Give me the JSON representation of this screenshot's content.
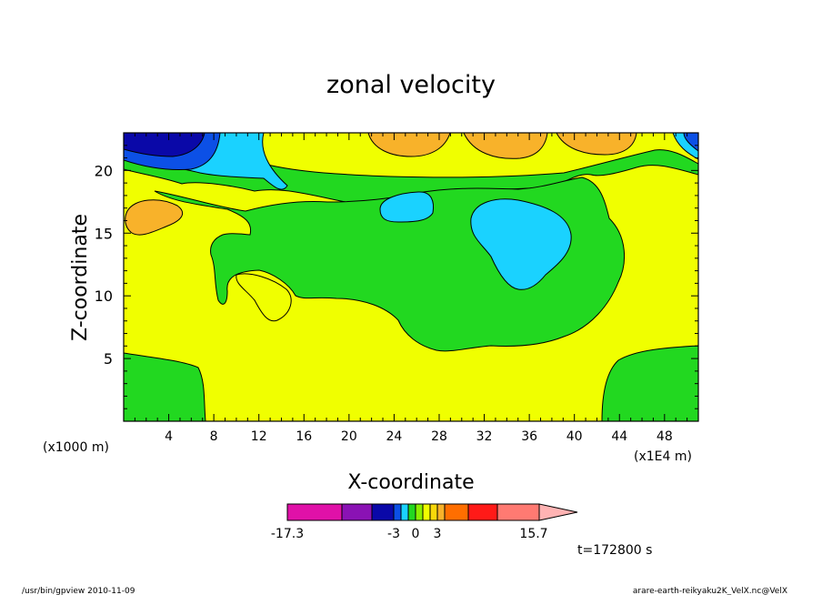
{
  "chart_data": {
    "type": "heatmap",
    "title": "zonal velocity",
    "xlabel": "X-coordinate",
    "ylabel": "Z-coordinate",
    "x_unit_label": "(x1E4 m)",
    "y_unit_label": "(x1000 m)",
    "xlim": [
      0,
      51
    ],
    "ylim": [
      0,
      23
    ],
    "x_ticks": [
      4,
      8,
      12,
      16,
      20,
      24,
      28,
      32,
      36,
      40,
      44,
      48
    ],
    "y_ticks": [
      5,
      10,
      15,
      20
    ],
    "colorbar": {
      "ticks": [
        "-17.3",
        "-3",
        "0",
        "3",
        "15.7"
      ],
      "colors": [
        "#e011a8",
        "#8a12b4",
        "#0a08a8",
        "#0c50e6",
        "#1ad2ff",
        "#22d820",
        "#8bf000",
        "#f0ff00",
        "#f8d80a",
        "#f8b22a",
        "#ff6e00",
        "#ff1a18",
        "#ff7a72",
        "#ffb3b3"
      ]
    },
    "time_label": "t=172800 s"
  },
  "footer": {
    "left": "/usr/bin/gpview   2010-11-09",
    "right": "arare-earth-reikyaku2K_VelX.nc@VelX"
  }
}
